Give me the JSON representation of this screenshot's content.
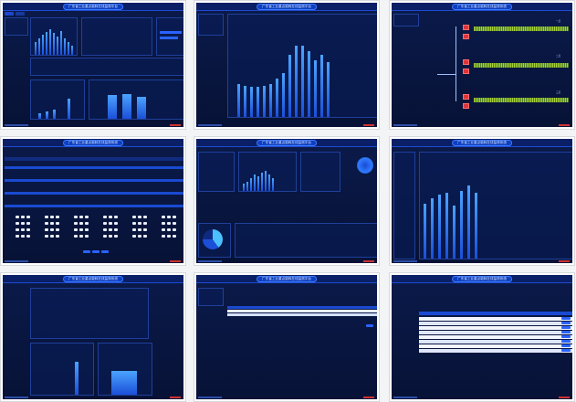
{
  "screens": [
    {
      "id": "s1",
      "title": "广东省工业重点能耗在线监测平台"
    },
    {
      "id": "s2",
      "title": "广东省工业重点能耗在线监测平台"
    },
    {
      "id": "s3",
      "title": "广东省工业重点能耗在线监测系统"
    },
    {
      "id": "s4",
      "title": "广东省工业重点能耗在线监测系统"
    },
    {
      "id": "s5",
      "title": "广东省工业重点能耗在线监测平台"
    },
    {
      "id": "s6",
      "title": "广东省工业重点能耗在线监测系统"
    },
    {
      "id": "s7",
      "title": "广东省工业重点能耗在线监测系统"
    },
    {
      "id": "s8",
      "title": "广东省工业重点能耗在线监测平台"
    },
    {
      "id": "s9",
      "title": "广东省工业重点能耗在线监测系统"
    }
  ],
  "s3_lines": [
    "一层",
    "二层",
    "三层"
  ],
  "colors": {
    "accent": "#1d47c9",
    "bar": "#2f7bff",
    "alarm": "#e0323a",
    "wave": "#b7e33a"
  }
}
